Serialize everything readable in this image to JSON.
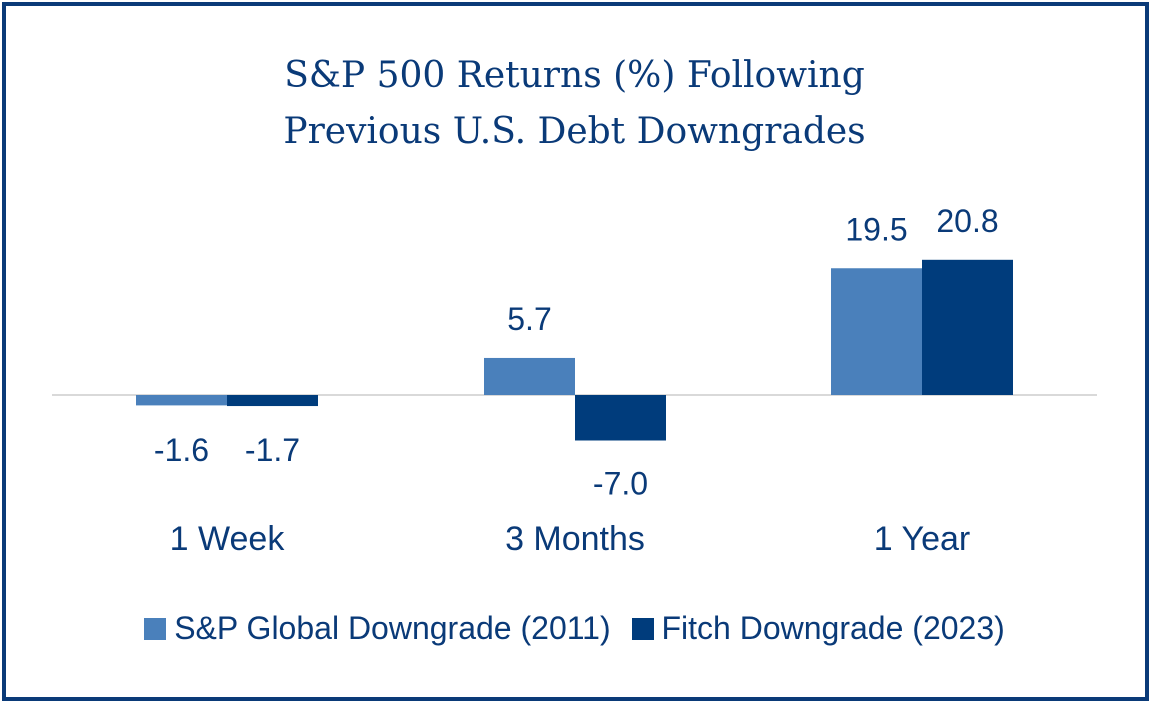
{
  "colors": {
    "border": "#0a3a78",
    "text": "#0a3a78",
    "series1": "#4a80bb",
    "series2": "#003c7c"
  },
  "chart_data": {
    "type": "bar",
    "title_line1": "S&P 500 Returns (%) Following",
    "title_line2": "Previous U.S. Debt Downgrades",
    "categories": [
      "1 Week",
      "3 Months",
      "1 Year"
    ],
    "series": [
      {
        "name": "S&P Global Downgrade (2011)",
        "values": [
          -1.6,
          5.7,
          19.5
        ]
      },
      {
        "name": "Fitch Downgrade (2023)",
        "values": [
          -1.7,
          -7.0,
          20.8
        ]
      }
    ],
    "data_labels": [
      [
        "-1.6",
        "5.7",
        "19.5"
      ],
      [
        "-1.7",
        "-7.0",
        "20.8"
      ]
    ],
    "ylim": [
      -8,
      22
    ],
    "grid": false,
    "legend_position": "bottom"
  }
}
